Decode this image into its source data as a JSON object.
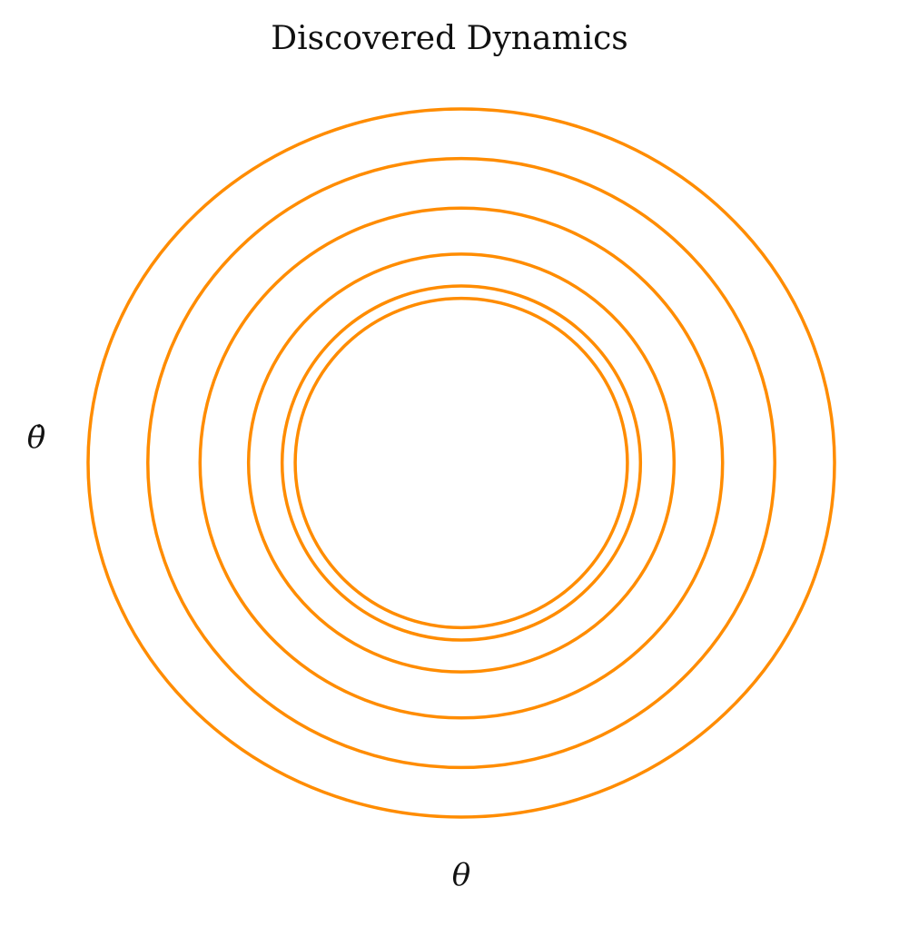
{
  "chart_data": {
    "type": "line",
    "title": "Discovered Dynamics",
    "xlabel": "θ",
    "ylabel": "θ̇",
    "axes_visible": false,
    "grid": false,
    "legend": "none",
    "color": "#ff8c00",
    "xlim": [
      -1.0,
      1.0
    ],
    "ylim": [
      -1.0,
      1.0
    ],
    "series": [
      {
        "shape": "closed-orbit",
        "rx": 1.0,
        "ry": 1.0
      },
      {
        "shape": "closed-orbit",
        "rx": 0.84,
        "ry": 0.86
      },
      {
        "shape": "closed-orbit",
        "rx": 0.7,
        "ry": 0.72
      },
      {
        "shape": "closed-orbit",
        "rx": 0.57,
        "ry": 0.59
      },
      {
        "shape": "closed-orbit",
        "rx": 0.48,
        "ry": 0.5
      },
      {
        "shape": "closed-orbit",
        "rx": 0.445,
        "ry": 0.465
      }
    ]
  }
}
